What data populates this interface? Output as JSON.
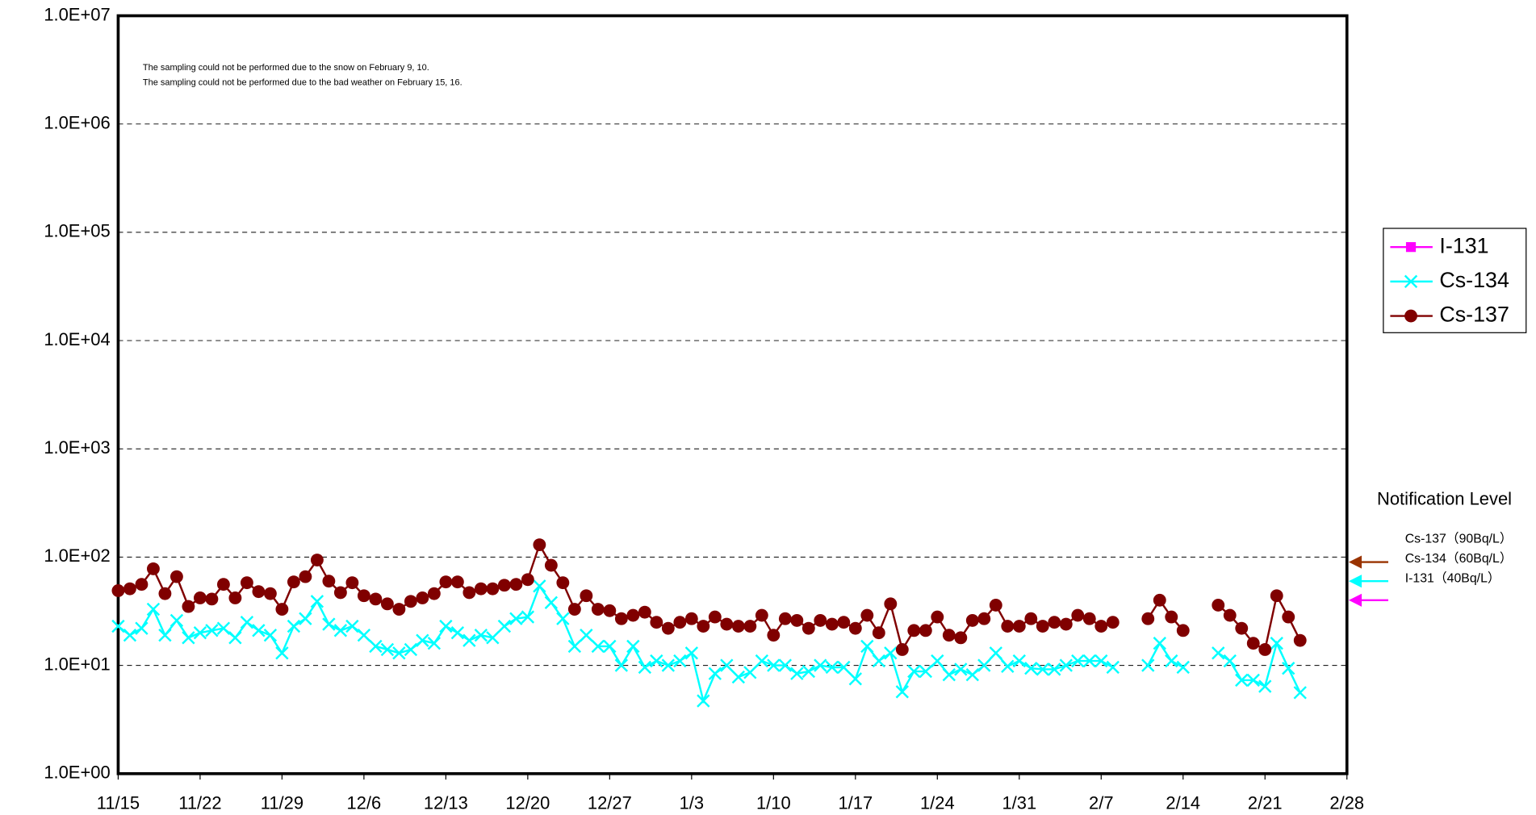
{
  "chart_data": {
    "type": "line",
    "annotations": [
      "The sampling could not be performed due to the snow on February 9, 10.",
      "The sampling could not be performed due to the bad weather on February 15, 16."
    ],
    "categories": [
      "11/15",
      null,
      null,
      null,
      null,
      null,
      null,
      "11/22",
      null,
      null,
      null,
      null,
      null,
      null,
      "11/29",
      null,
      null,
      null,
      null,
      null,
      null,
      "12/6",
      null,
      null,
      null,
      null,
      null,
      null,
      "12/13",
      null,
      null,
      null,
      null,
      null,
      null,
      "12/20",
      null,
      null,
      null,
      null,
      null,
      null,
      "12/27",
      null,
      null,
      null,
      null,
      null,
      null,
      "1/3",
      null,
      null,
      null,
      null,
      null,
      null,
      "1/10",
      null,
      null,
      null,
      null,
      null,
      null,
      "1/17",
      null,
      null,
      null,
      null,
      null,
      null,
      "1/24",
      null,
      null,
      null,
      null,
      null,
      null,
      "1/31",
      null,
      null,
      null,
      null,
      null,
      null,
      "2/7",
      null,
      null,
      null,
      null,
      null,
      null,
      "2/14",
      null,
      null,
      null,
      null,
      null,
      null,
      "2/21",
      null,
      null,
      null,
      null,
      null,
      null,
      "2/28"
    ],
    "series": [
      {
        "name": "I-131",
        "color": "#ff00ff",
        "marker": "square",
        "values": [
          null,
          null,
          null,
          null,
          null,
          null,
          null,
          null,
          null,
          null,
          null,
          null,
          null,
          null,
          null,
          null,
          null,
          null,
          null,
          null,
          null,
          null,
          null,
          null,
          null,
          null,
          null,
          null,
          null,
          null,
          null,
          null,
          null,
          null,
          null,
          null,
          null,
          null,
          null,
          null,
          null,
          null,
          null,
          null,
          null,
          null,
          null,
          null,
          null,
          null,
          null,
          null,
          null,
          null,
          null,
          null,
          null,
          null,
          null,
          null,
          null,
          null,
          null,
          null,
          null,
          null,
          null,
          null,
          null,
          null,
          null,
          null,
          null,
          null,
          null,
          null,
          null,
          null,
          null,
          null,
          null,
          null,
          null,
          null,
          null,
          null,
          null,
          null,
          null,
          null,
          null,
          null,
          null,
          null,
          null,
          null,
          null,
          null,
          null,
          null,
          null,
          null,
          null,
          null,
          null,
          null
        ]
      },
      {
        "name": "Cs-134",
        "color": "#00ffff",
        "marker": "x",
        "values": [
          23,
          19,
          22,
          33,
          19,
          26,
          18,
          20,
          21,
          22,
          18,
          25,
          21,
          19,
          13,
          23,
          27,
          39,
          24,
          21,
          23,
          19,
          15,
          14,
          13,
          14,
          17,
          16,
          23,
          20,
          17,
          19,
          18,
          23,
          27,
          28,
          54,
          38,
          27,
          15,
          19,
          15,
          15,
          10,
          15,
          9.6,
          11,
          10,
          11,
          13,
          4.7,
          8.4,
          10,
          7.8,
          8.6,
          11,
          10,
          10,
          8.4,
          8.8,
          10,
          9.6,
          9.6,
          7.5,
          15,
          11,
          13,
          5.7,
          8.8,
          8.8,
          11,
          8.2,
          9.2,
          8.2,
          10,
          13,
          9.8,
          11,
          9.4,
          9.2,
          9.2,
          10,
          11,
          11,
          11,
          9.6,
          null,
          null,
          10,
          16,
          11,
          9.6,
          null,
          null,
          13,
          11,
          7.3,
          7.3,
          6.4,
          16,
          9.4,
          5.6,
          null,
          null,
          null,
          null
        ]
      },
      {
        "name": "Cs-137",
        "color": "#800000",
        "marker": "circle",
        "values": [
          49,
          51,
          56,
          78,
          46,
          66,
          35,
          42,
          41,
          56,
          42,
          58,
          48,
          46,
          33,
          59,
          66,
          94,
          60,
          47,
          58,
          44,
          41,
          37,
          33,
          39,
          42,
          46,
          59,
          59,
          47,
          51,
          51,
          55,
          56,
          62,
          130,
          84,
          58,
          33,
          44,
          33,
          32,
          27,
          29,
          31,
          25,
          22,
          25,
          27,
          23,
          28,
          24,
          23,
          23,
          29,
          19,
          27,
          26,
          22,
          26,
          24,
          25,
          22,
          29,
          20,
          37,
          14,
          21,
          21,
          28,
          19,
          18,
          26,
          27,
          36,
          23,
          23,
          27,
          23,
          25,
          24,
          29,
          27,
          23,
          25,
          null,
          null,
          27,
          40,
          28,
          21,
          null,
          null,
          36,
          29,
          22,
          16,
          14,
          44,
          28,
          17,
          null,
          null,
          null,
          null
        ]
      }
    ],
    "log_scale": true,
    "ylim": [
      1,
      10000000
    ],
    "yticks": [
      {
        "value": 1,
        "label": "1.0E+00"
      },
      {
        "value": 10,
        "label": "1.0E+01"
      },
      {
        "value": 100,
        "label": "1.0E+02"
      },
      {
        "value": 1000,
        "label": "1.0E+03"
      },
      {
        "value": 10000,
        "label": "1.0E+04"
      },
      {
        "value": 100000,
        "label": "1.0E+05"
      },
      {
        "value": 1000000,
        "label": "1.0E+06"
      },
      {
        "value": 10000000,
        "label": "1.0E+07"
      }
    ],
    "grid": true,
    "legend": "right",
    "notification": {
      "title": "Notification Level",
      "levels": [
        {
          "label": "Cs-137（90Bq/L）",
          "value": 90,
          "color": "#993300"
        },
        {
          "label": "Cs-134（60Bq/L）",
          "value": 60,
          "color": "#00ffff"
        },
        {
          "label": "I-131（40Bq/L）",
          "value": 40,
          "color": "#ff00ff"
        }
      ]
    }
  }
}
